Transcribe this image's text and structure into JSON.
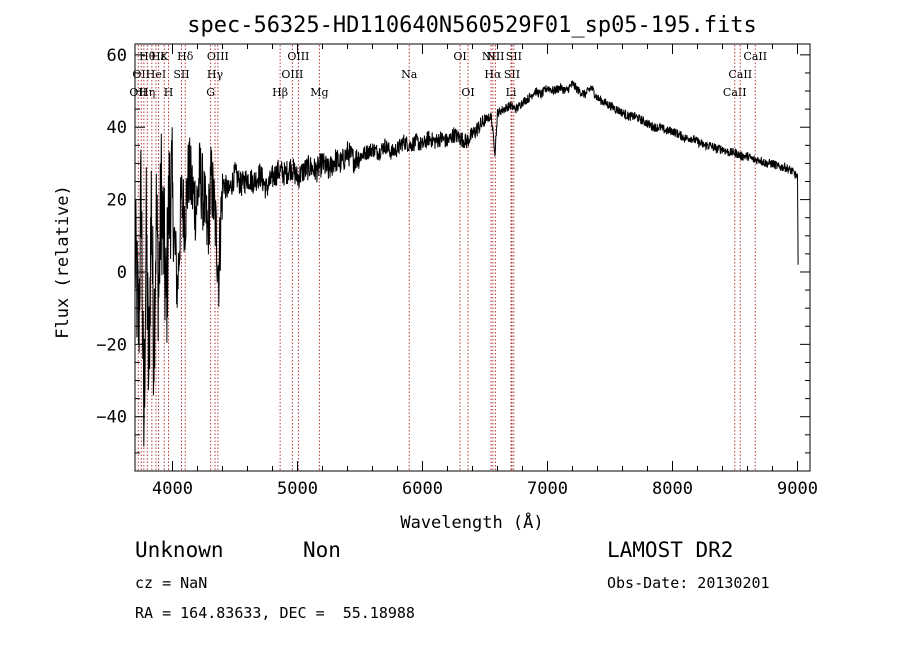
{
  "chart_data": {
    "type": "line",
    "title": "spec-56325-HD110640N560529F01_sp05-195.fits",
    "xlabel": "Wavelength (Å)",
    "ylabel": "Flux (relative)",
    "xlim": [
      3700,
      9100
    ],
    "ylim": [
      -55,
      63
    ],
    "xticks": [
      4000,
      5000,
      6000,
      7000,
      8000,
      9000
    ],
    "xtick_labels": [
      "4000",
      "5000",
      "6000",
      "7000",
      "8000",
      "9000"
    ],
    "yticks": [
      -40,
      -20,
      0,
      20,
      40,
      60
    ],
    "ytick_labels": [
      "−40",
      "−20",
      "0",
      "20",
      "40",
      "60"
    ],
    "line_color": "#000000",
    "marker_color": "#b22222",
    "series": [
      {
        "name": "flux",
        "x": [
          3700,
          3730,
          3750,
          3770,
          3790,
          3810,
          3830,
          3850,
          3870,
          3890,
          3910,
          3930,
          3950,
          3970,
          3990,
          4010,
          4040,
          4070,
          4100,
          4130,
          4160,
          4190,
          4220,
          4250,
          4280,
          4310,
          4340,
          4370,
          4400,
          4450,
          4500,
          4550,
          4600,
          4650,
          4700,
          4750,
          4800,
          4850,
          4900,
          4950,
          5000,
          5050,
          5100,
          5150,
          5200,
          5250,
          5300,
          5350,
          5400,
          5450,
          5500,
          5550,
          5600,
          5650,
          5700,
          5750,
          5800,
          5850,
          5900,
          5950,
          6000,
          6050,
          6100,
          6150,
          6200,
          6250,
          6300,
          6350,
          6400,
          6450,
          6500,
          6550,
          6580,
          6600,
          6650,
          6700,
          6750,
          6800,
          6850,
          6900,
          6950,
          7000,
          7050,
          7100,
          7150,
          7200,
          7250,
          7300,
          7350,
          7400,
          7450,
          7500,
          7550,
          7600,
          7650,
          7700,
          7750,
          7800,
          7850,
          7900,
          7950,
          8000,
          8050,
          8100,
          8150,
          8200,
          8250,
          8300,
          8350,
          8400,
          8450,
          8500,
          8550,
          8600,
          8650,
          8700,
          8750,
          8800,
          8850,
          8900,
          8950,
          8980,
          9000,
          9005
        ],
        "y": [
          5,
          -15,
          25,
          -45,
          10,
          -30,
          20,
          -20,
          15,
          -5,
          22,
          8,
          -10,
          18,
          25,
          12,
          -5,
          20,
          15,
          28,
          22,
          18,
          27,
          20,
          10,
          26,
          15,
          0,
          25,
          22,
          27,
          24,
          26,
          25,
          27,
          23,
          26,
          28,
          27,
          29,
          26,
          28,
          29,
          28,
          30,
          28,
          31,
          30,
          33,
          31,
          32,
          33,
          34,
          33,
          35,
          33,
          34,
          36,
          35,
          36,
          35,
          37,
          36,
          37,
          36,
          38,
          37,
          36,
          38,
          40,
          42,
          43,
          33,
          44,
          45,
          46,
          45,
          47,
          48,
          50,
          49,
          51,
          50,
          51,
          50,
          52,
          50,
          49,
          51,
          48,
          47,
          46,
          45,
          44,
          43,
          43,
          42,
          41,
          40,
          40,
          39,
          39,
          38,
          37,
          37,
          36,
          35,
          35,
          34,
          34,
          33,
          33,
          32,
          32,
          31,
          31,
          30,
          30,
          29,
          29,
          28,
          27,
          26,
          2
        ]
      }
    ],
    "line_markers": [
      {
        "x": 3726,
        "name": "OII",
        "row": 3
      },
      {
        "x": 3750,
        "name": "OII",
        "row": 2
      },
      {
        "x": 3771,
        "name": "H",
        "row": 3
      },
      {
        "x": 3798,
        "name": "Hθ",
        "row": 1
      },
      {
        "x": 3835,
        "name": "η",
        "row": 3
      },
      {
        "x": 3868,
        "name": "HeI",
        "row": 2
      },
      {
        "x": 3889,
        "name": "Hε",
        "row": 1
      },
      {
        "x": 3934,
        "name": "K",
        "row": 1
      },
      {
        "x": 3968,
        "name": "H",
        "row": 3
      },
      {
        "x": 4072,
        "name": "SII",
        "row": 2
      },
      {
        "x": 4102,
        "name": "Hδ",
        "row": 1
      },
      {
        "x": 4305,
        "name": "G",
        "row": 3
      },
      {
        "x": 4340,
        "name": "Hγ",
        "row": 2
      },
      {
        "x": 4363,
        "name": "OIII",
        "row": 1
      },
      {
        "x": 4861,
        "name": "Hβ",
        "row": 3
      },
      {
        "x": 4959,
        "name": "OIII",
        "row": 2
      },
      {
        "x": 5007,
        "name": "OIII",
        "row": 1
      },
      {
        "x": 5175,
        "name": "Mg",
        "row": 3
      },
      {
        "x": 5894,
        "name": "Na",
        "row": 2
      },
      {
        "x": 6300,
        "name": "OI",
        "row": 1
      },
      {
        "x": 6364,
        "name": "OI",
        "row": 3
      },
      {
        "x": 6548,
        "name": "NII",
        "row": 1
      },
      {
        "x": 6563,
        "name": "Hα",
        "row": 2
      },
      {
        "x": 6583,
        "name": "NII",
        "row": 1
      },
      {
        "x": 6708,
        "name": "Li",
        "row": 3
      },
      {
        "x": 6716,
        "name": "SII",
        "row": 2
      },
      {
        "x": 6731,
        "name": "SII",
        "row": 1
      },
      {
        "x": 8498,
        "name": "CaII",
        "row": 3
      },
      {
        "x": 8542,
        "name": "CaII",
        "row": 2
      },
      {
        "x": 8662,
        "name": "CaII",
        "row": 1
      }
    ]
  },
  "info": {
    "object_class": "Unknown",
    "subclass": "Non",
    "survey": "LAMOST DR2",
    "redshift_line": "cz = NaN",
    "obs_date_line": "Obs-Date: 20130201",
    "coords_line": "RA = 164.83633, DEC =  55.18988"
  }
}
